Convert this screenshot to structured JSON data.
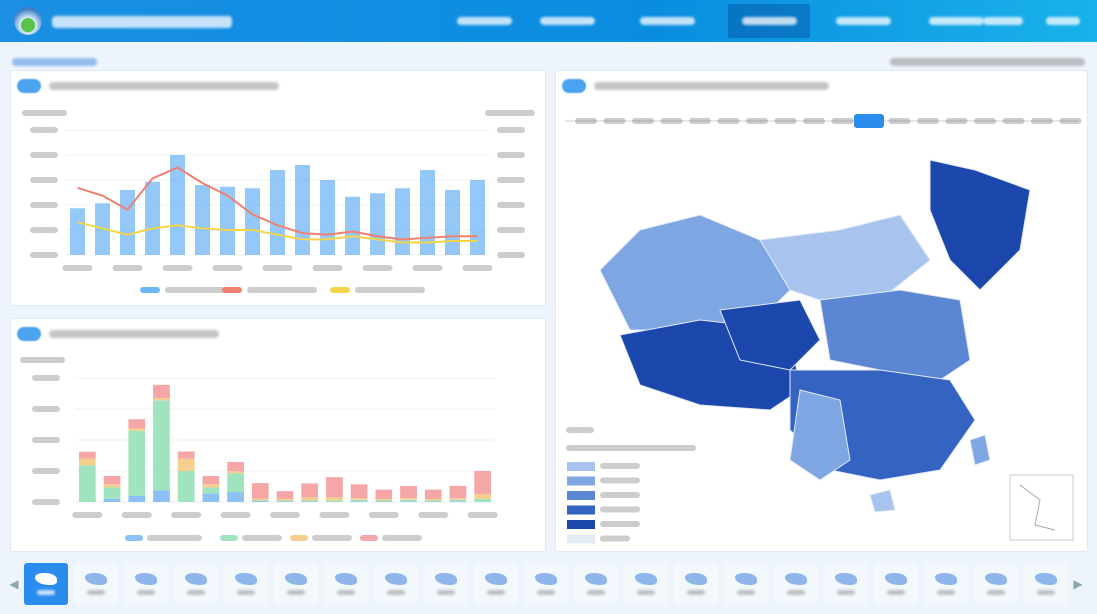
{
  "colors": {
    "header": "#0a8de0",
    "accent": "#2a8cec",
    "bar_blue": "#6fb6f7",
    "line_red": "#f08070",
    "line_yellow": "#f2d54a",
    "stack": [
      "#8cc1f5",
      "#9fe3bf",
      "#f6cf8e",
      "#f5a7a7"
    ],
    "map_shades": [
      "#a8c4ee",
      "#7ea6e3",
      "#5a86d4",
      "#3463c2",
      "#1c48ad"
    ]
  },
  "header": {
    "nav_count": 6,
    "active_nav": 3
  },
  "chart_data": [
    {
      "type": "bar+line",
      "id": "top-chart",
      "title": "",
      "categories_count": 17,
      "ylim_left": [
        0,
        5
      ],
      "ylim_right": [
        0,
        8
      ],
      "grid": true,
      "legend": "bottom",
      "series": [
        {
          "kind": "bar",
          "axis": "left",
          "values": [
            1.87,
            2.07,
            2.6,
            2.93,
            4.0,
            2.8,
            2.73,
            2.67,
            3.4,
            3.6,
            3.0,
            2.33,
            2.47,
            2.67,
            3.4,
            2.6,
            3.0
          ]
        },
        {
          "kind": "line",
          "axis": "right",
          "values": [
            4.3,
            3.8,
            2.9,
            4.9,
            5.6,
            4.6,
            3.8,
            2.6,
            1.9,
            1.4,
            1.3,
            1.5,
            1.2,
            1.0,
            1.1,
            1.2,
            1.2
          ]
        },
        {
          "kind": "line",
          "axis": "right",
          "values": [
            2.1,
            1.7,
            1.3,
            1.7,
            1.9,
            1.7,
            1.6,
            1.6,
            1.3,
            1.0,
            1.0,
            1.2,
            1.0,
            0.8,
            0.8,
            0.9,
            0.9
          ]
        }
      ]
    },
    {
      "type": "bar",
      "stacked": true,
      "id": "bottom-chart",
      "title": "",
      "categories_count": 17,
      "ylim": [
        0,
        4
      ],
      "grid": true,
      "legend": "bottom",
      "series": [
        {
          "values": [
            0,
            0.1,
            0.2,
            0.38,
            0,
            0.27,
            0.32,
            0.03,
            0.02,
            0.02,
            0,
            0.02,
            0.02,
            0.02,
            0.02,
            0.02,
            0
          ]
        },
        {
          "values": [
            1.18,
            0.37,
            2.1,
            2.9,
            1.0,
            0.2,
            0.6,
            0.03,
            0.03,
            0.03,
            0.05,
            0.05,
            0.03,
            0.05,
            0.03,
            0.05,
            0.1
          ]
        },
        {
          "values": [
            0.22,
            0.1,
            0.07,
            0.07,
            0.4,
            0.1,
            0.07,
            0.05,
            0.05,
            0.1,
            0.1,
            0.05,
            0.05,
            0.05,
            0.05,
            0.05,
            0.15
          ]
        },
        {
          "values": [
            0.22,
            0.27,
            0.3,
            0.43,
            0.23,
            0.27,
            0.3,
            0.5,
            0.25,
            0.45,
            0.65,
            0.45,
            0.3,
            0.4,
            0.3,
            0.4,
            0.75
          ]
        }
      ]
    }
  ],
  "map": {
    "timeline_count": 18,
    "timeline_selected": 10,
    "legend_levels": 6
  },
  "strip": {
    "count": 21,
    "selected": 0
  }
}
